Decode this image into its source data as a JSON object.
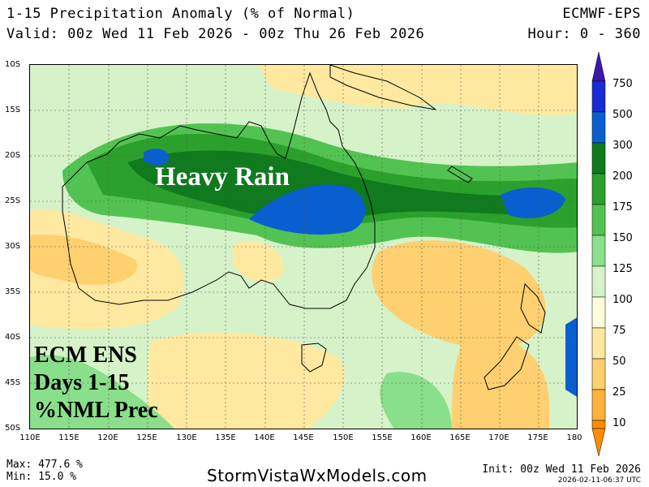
{
  "header": {
    "title": "1-15 Precipitation Anomaly (% of Normal)",
    "model": "ECMWF-EPS",
    "valid": "Valid: 00z Wed 11 Feb 2026 - 00z Thu 26 Feb 2026",
    "hours": "Hour: 0 - 360"
  },
  "map": {
    "lat_labels": [
      "10S",
      "15S",
      "20S",
      "25S",
      "30S",
      "35S",
      "40S",
      "45S",
      "50S"
    ],
    "lon_labels": [
      "110E",
      "115E",
      "120E",
      "125E",
      "130E",
      "135E",
      "140E",
      "145E",
      "150E",
      "155E",
      "160E",
      "165E",
      "170E",
      "175E",
      "180"
    ],
    "annotation_heavy": "Heavy Rain",
    "annotation_box": [
      "ECM ENS",
      "Days 1-15",
      "%NML Prec"
    ]
  },
  "legend": {
    "values": [
      "750",
      "500",
      "300",
      "200",
      "175",
      "150",
      "125",
      "100",
      "75",
      "50",
      "25",
      "10"
    ],
    "colors": [
      "#1a2bd6",
      "#0a5fd0",
      "#0f7a1e",
      "#2ca02c",
      "#52c352",
      "#8adf8a",
      "#d6f2c8",
      "#fffddc",
      "#ffe9a0",
      "#ffd070",
      "#ffb13b",
      "#ff8c00"
    ]
  },
  "footer": {
    "max": "Max: 477.6 %",
    "min": "Min: 15.0 %",
    "site": "StormVistaWxModels.com",
    "init": "Init: 00z Wed 11 Feb 2026",
    "stamp": "2026-02-11-06:37 UTC"
  }
}
